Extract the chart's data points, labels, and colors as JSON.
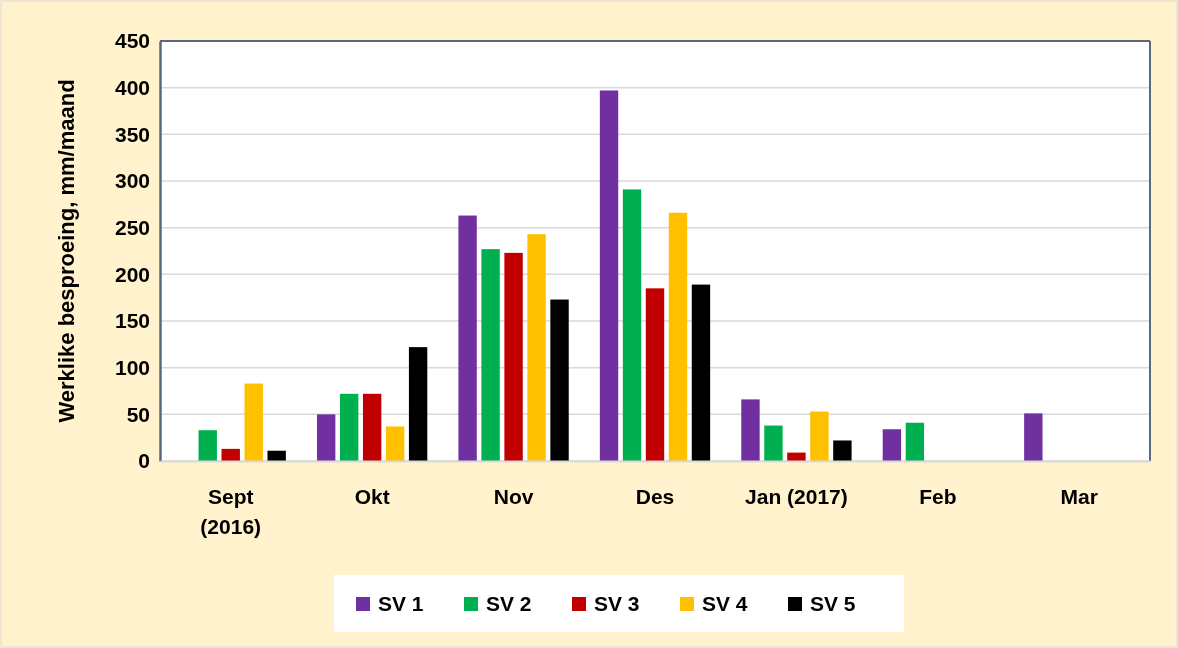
{
  "chart_data": {
    "type": "bar",
    "ylabel": "Werklike besproeing, mm/maand",
    "categories": [
      "Sept (2016)",
      "Okt",
      "Nov",
      "Des",
      "Jan (2017)",
      "Feb",
      "Mar"
    ],
    "series": [
      {
        "name": "SV 1",
        "color": "#7030a0",
        "values": [
          null,
          50,
          263,
          397,
          66,
          34,
          51
        ]
      },
      {
        "name": "SV 2",
        "color": "#00b050",
        "values": [
          33,
          72,
          227,
          291,
          38,
          41,
          null
        ]
      },
      {
        "name": "SV 3",
        "color": "#c00000",
        "values": [
          13,
          72,
          223,
          185,
          9,
          null,
          null
        ]
      },
      {
        "name": "SV 4",
        "color": "#ffc000",
        "values": [
          83,
          37,
          243,
          266,
          53,
          null,
          null
        ]
      },
      {
        "name": "SV 5",
        "color": "#000000",
        "values": [
          11,
          122,
          173,
          189,
          22,
          null,
          null
        ]
      }
    ],
    "ylim": [
      0,
      450
    ],
    "yticks": [
      0,
      50,
      100,
      150,
      200,
      250,
      300,
      350,
      400,
      450
    ],
    "grid": "y",
    "legend": "bottom"
  }
}
